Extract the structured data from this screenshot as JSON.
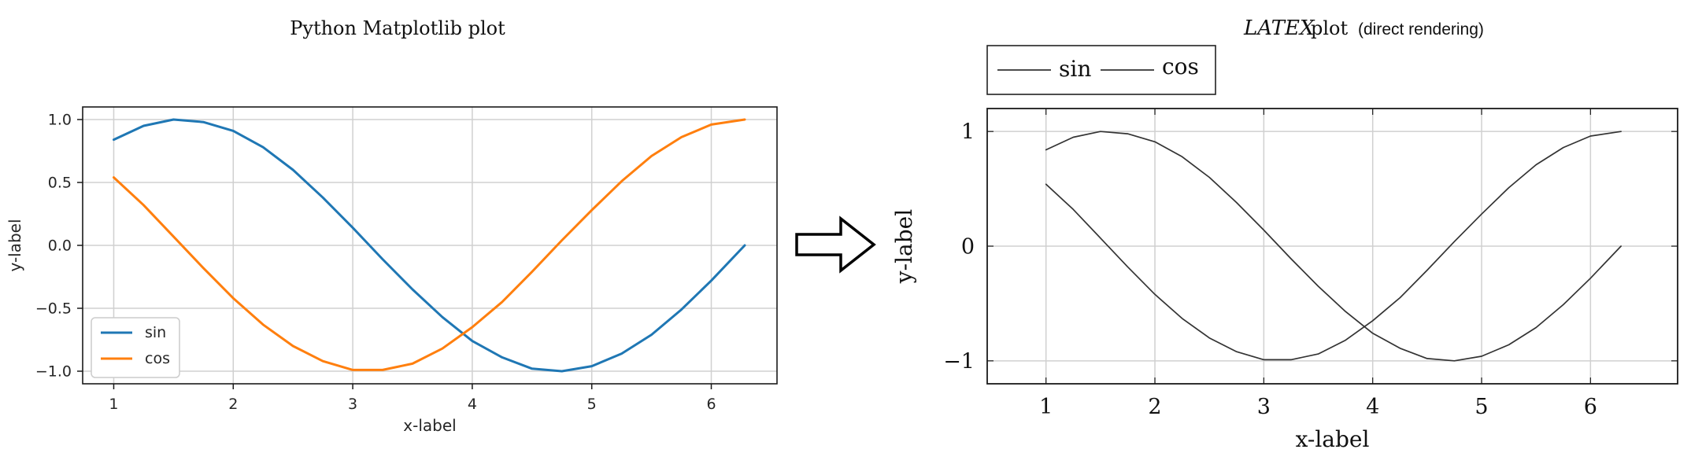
{
  "left_title": "Python Matplotlib plot",
  "right_title": {
    "latex": "LATEX",
    "word": "plot",
    "suffix": "(direct rendering)"
  },
  "colors": {
    "sin_mpl": "#1f77b4",
    "cos_mpl": "#ff7f0e",
    "latex_lines": "#333333",
    "grid": "#d0d0d0",
    "arrow": "#000000"
  },
  "arrow_icon": "right-outline-arrow",
  "chart_data": [
    {
      "type": "line",
      "style": "matplotlib",
      "title": "Python Matplotlib plot",
      "xlabel": "x-label",
      "ylabel": "y-label",
      "xlim": [
        0.74,
        6.55
      ],
      "ylim": [
        -1.1,
        1.1
      ],
      "xticks": [
        1,
        2,
        3,
        4,
        5,
        6
      ],
      "xtick_labels": [
        "1",
        "2",
        "3",
        "4",
        "5",
        "6"
      ],
      "yticks": [
        -1.0,
        -0.5,
        0.0,
        0.5,
        1.0
      ],
      "ytick_labels": [
        "−1.0",
        "−0.5",
        "0.0",
        "0.5",
        "1.0"
      ],
      "grid": true,
      "legend_position": "lower-left",
      "series": [
        {
          "name": "sin",
          "x": [
            1.0,
            1.25,
            1.5,
            1.75,
            2.0,
            2.25,
            2.5,
            2.75,
            3.0,
            3.25,
            3.5,
            3.75,
            4.0,
            4.25,
            4.5,
            4.75,
            5.0,
            5.25,
            5.5,
            5.75,
            6.0,
            6.28
          ],
          "y": [
            0.84,
            0.95,
            1.0,
            0.98,
            0.91,
            0.78,
            0.6,
            0.38,
            0.14,
            -0.11,
            -0.35,
            -0.57,
            -0.76,
            -0.89,
            -0.98,
            -1.0,
            -0.96,
            -0.86,
            -0.71,
            -0.51,
            -0.28,
            0.0
          ]
        },
        {
          "name": "cos",
          "x": [
            1.0,
            1.25,
            1.5,
            1.75,
            2.0,
            2.25,
            2.5,
            2.75,
            3.0,
            3.25,
            3.5,
            3.75,
            4.0,
            4.25,
            4.5,
            4.75,
            5.0,
            5.25,
            5.5,
            5.75,
            6.0,
            6.28
          ],
          "y": [
            0.54,
            0.32,
            0.07,
            -0.18,
            -0.42,
            -0.63,
            -0.8,
            -0.92,
            -0.99,
            -0.99,
            -0.94,
            -0.82,
            -0.65,
            -0.45,
            -0.21,
            0.04,
            0.28,
            0.51,
            0.71,
            0.86,
            0.96,
            1.0
          ]
        }
      ]
    },
    {
      "type": "line",
      "style": "latex",
      "title": "LATEX plot (direct rendering)",
      "xlabel": "x-label",
      "ylabel": "y-label",
      "xlim": [
        0.46,
        6.8
      ],
      "ylim": [
        -1.2,
        1.2
      ],
      "xticks": [
        1,
        2,
        3,
        4,
        5,
        6
      ],
      "xtick_labels": [
        "1",
        "2",
        "3",
        "4",
        "5",
        "6"
      ],
      "yticks": [
        -1,
        0,
        1
      ],
      "ytick_labels": [
        "−1",
        "0",
        "1"
      ],
      "grid": true,
      "legend_position": "above-top-left",
      "series": [
        {
          "name": "sin",
          "x": [
            1.0,
            1.25,
            1.5,
            1.75,
            2.0,
            2.25,
            2.5,
            2.75,
            3.0,
            3.25,
            3.5,
            3.75,
            4.0,
            4.25,
            4.5,
            4.75,
            5.0,
            5.25,
            5.5,
            5.75,
            6.0,
            6.28
          ],
          "y": [
            0.84,
            0.95,
            1.0,
            0.98,
            0.91,
            0.78,
            0.6,
            0.38,
            0.14,
            -0.11,
            -0.35,
            -0.57,
            -0.76,
            -0.89,
            -0.98,
            -1.0,
            -0.96,
            -0.86,
            -0.71,
            -0.51,
            -0.28,
            0.0
          ]
        },
        {
          "name": "cos",
          "x": [
            1.0,
            1.25,
            1.5,
            1.75,
            2.0,
            2.25,
            2.5,
            2.75,
            3.0,
            3.25,
            3.5,
            3.75,
            4.0,
            4.25,
            4.5,
            4.75,
            5.0,
            5.25,
            5.5,
            5.75,
            6.0,
            6.28
          ],
          "y": [
            0.54,
            0.32,
            0.07,
            -0.18,
            -0.42,
            -0.63,
            -0.8,
            -0.92,
            -0.99,
            -0.99,
            -0.94,
            -0.82,
            -0.65,
            -0.45,
            -0.21,
            0.04,
            0.28,
            0.51,
            0.71,
            0.86,
            0.96,
            1.0
          ]
        }
      ]
    }
  ]
}
